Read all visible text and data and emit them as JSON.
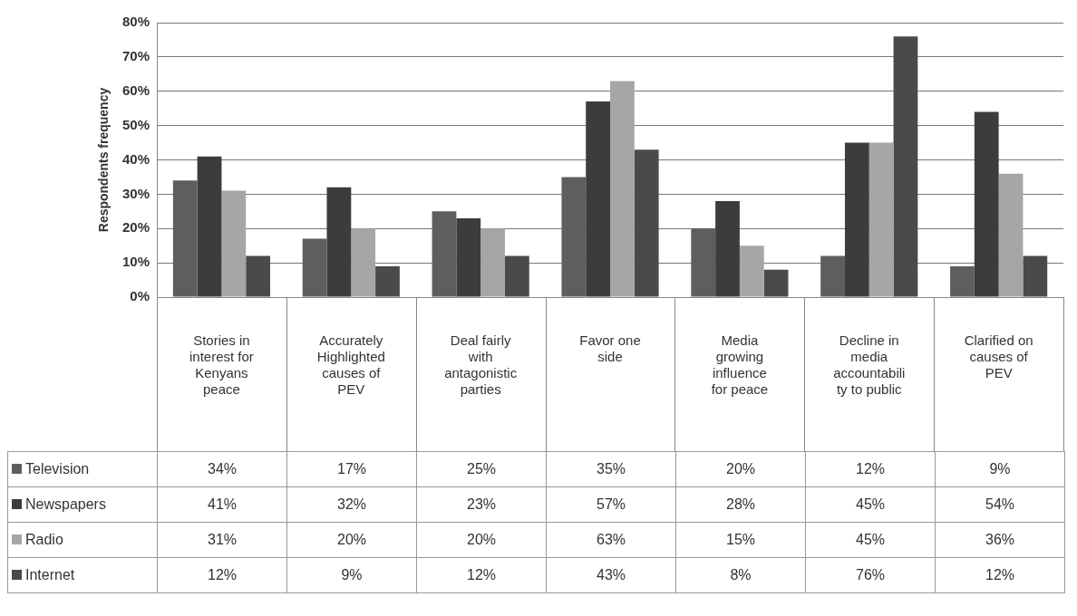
{
  "chart_data": {
    "type": "bar",
    "ylabel": "Respondents frequency",
    "categories": [
      "Stories in interest for Kenyans peace",
      "Accurately Highlighted causes of PEV",
      "Deal fairly with antagonistic parties",
      "Favor one side",
      "Media growing influence for peace",
      "Decline in media accountability to public",
      "Clarified on causes of PEV"
    ],
    "series": [
      {
        "name": "Television",
        "color": "#5e5e5e",
        "values": [
          34,
          17,
          25,
          35,
          20,
          12,
          9
        ],
        "value_labels": [
          "34%",
          "17%",
          "25%",
          "35%",
          "20%",
          "12%",
          "9%"
        ]
      },
      {
        "name": "Newspapers",
        "color": "#3c3c3c",
        "values": [
          41,
          32,
          23,
          57,
          28,
          45,
          54
        ],
        "value_labels": [
          "41%",
          "32%",
          "23%",
          "57%",
          "28%",
          "45%",
          "54%"
        ]
      },
      {
        "name": "Radio",
        "color": "#a6a6a6",
        "values": [
          31,
          20,
          20,
          63,
          15,
          45,
          36
        ],
        "value_labels": [
          "31%",
          "20%",
          "20%",
          "63%",
          "15%",
          "45%",
          "36%"
        ]
      },
      {
        "name": "Internet",
        "color": "#4a4a4a",
        "values": [
          12,
          9,
          12,
          43,
          8,
          76,
          12
        ],
        "value_labels": [
          "12%",
          "9%",
          "12%",
          "43%",
          "8%",
          "76%",
          "12%"
        ]
      }
    ],
    "ylim": [
      0,
      80
    ],
    "yticks": [
      {
        "value": 0,
        "label": "0%"
      },
      {
        "value": 10,
        "label": "10%"
      },
      {
        "value": 20,
        "label": "20%"
      },
      {
        "value": 30,
        "label": "30%"
      },
      {
        "value": 40,
        "label": "40%"
      },
      {
        "value": 50,
        "label": "50%"
      },
      {
        "value": 60,
        "label": "60%"
      },
      {
        "value": 70,
        "label": "70%"
      },
      {
        "value": 80,
        "label": "80%"
      }
    ],
    "grid": "y",
    "legend": "bottom"
  }
}
